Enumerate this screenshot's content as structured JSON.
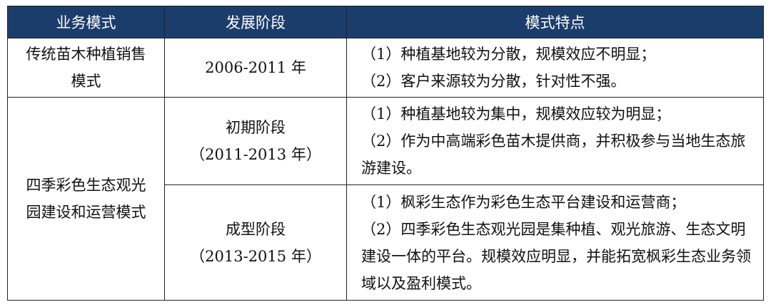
{
  "headers": [
    "业务模式",
    "发展阶段",
    "模式特点"
  ],
  "rows": [
    {
      "mode": "传统苗木种植销售模式",
      "stage": "2006-2011 年",
      "features": [
        "（1）种植基地较为分散，规模效应不明显；",
        "（2）客户来源较为分散，针对性不强。"
      ]
    },
    {
      "mode": "四季彩色生态观光园建设和运营模式",
      "stages": [
        {
          "name": "初期阶段",
          "period": "（2011-2013 年）",
          "features": [
            "（1）种植基地较为集中，规模效应较为明显；",
            "（2）作为中高端彩色苗木提供商，并积极参与当地生态旅游建设。"
          ]
        },
        {
          "name": "成型阶段",
          "period": "（2013-2015 年）",
          "features": [
            "（1）枫彩生态作为彩色生态平台建设和运营商；",
            "（2）四季彩色生态观光园是集种植、观光旅游、生态文明建设一体的平台。规模效应明显，并能拓宽枫彩生态业务领域以及盈利模式。"
          ]
        }
      ]
    }
  ],
  "colors": {
    "header_bg": "#1b3d6b"
  }
}
